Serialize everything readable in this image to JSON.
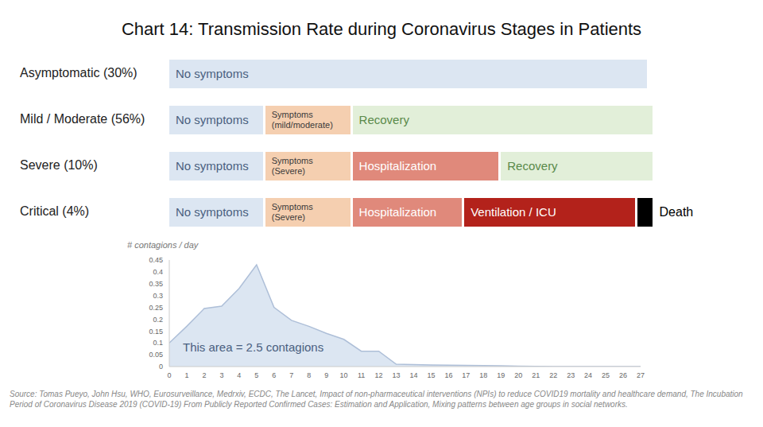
{
  "title": "Chart 14: Transmission Rate during Coronavirus Stages in Patients",
  "stages": [
    {
      "name": "Asymptomatic (30%)",
      "segments": [
        {
          "label": "No symptoms",
          "days": 27.5,
          "color": "#dce6f2",
          "text_color": "#4a5f80"
        }
      ]
    },
    {
      "name": "Mild / Moderate (56%)",
      "segments": [
        {
          "label": "No symptoms",
          "days": 5.5,
          "color": "#dce6f2",
          "text_color": "#4a5f80"
        },
        {
          "label": "Symptoms\n(mild/moderate)",
          "days": 5,
          "color": "#f5cfb0",
          "text_color": "#3a3a3a"
        },
        {
          "label": "Recovery",
          "days": 17.3,
          "color": "#e2efd9",
          "text_color": "#5a8a4a"
        }
      ]
    },
    {
      "name": "Severe (10%)",
      "segments": [
        {
          "label": "No symptoms",
          "days": 5.5,
          "color": "#dce6f2",
          "text_color": "#4a5f80"
        },
        {
          "label": "Symptoms\n(Severe)",
          "days": 5,
          "color": "#f5cfb0",
          "text_color": "#3a3a3a"
        },
        {
          "label": "Hospitalization",
          "days": 8.5,
          "color": "#e0897b",
          "text_color": "#ffffff"
        },
        {
          "label": "Recovery",
          "days": 8.8,
          "color": "#e2efd9",
          "text_color": "#5a8a4a"
        }
      ]
    },
    {
      "name": "Critical (4%)",
      "segments": [
        {
          "label": "No symptoms",
          "days": 5.5,
          "color": "#dce6f2",
          "text_color": "#4a5f80"
        },
        {
          "label": "Symptoms\n(Severe)",
          "days": 5,
          "color": "#f5cfb0",
          "text_color": "#3a3a3a"
        },
        {
          "label": "Hospitalization",
          "days": 6.4,
          "color": "#e0897b",
          "text_color": "#ffffff"
        },
        {
          "label": "Ventilation / ICU",
          "days": 9.9,
          "color": "#b3221b",
          "text_color": "#ffffff"
        },
        {
          "label": "Death",
          "days": 1,
          "color": "#000000",
          "text_color": "#000000",
          "label_position": "outside"
        }
      ]
    }
  ],
  "chart_data": {
    "type": "area",
    "ylabel": "# contagions / day",
    "annotation": "This area = 2.5 contagions",
    "x": [
      0,
      1,
      2,
      3,
      4,
      5,
      6,
      7,
      8,
      9,
      10,
      11,
      12,
      13,
      14,
      15,
      16,
      17,
      18,
      19,
      20,
      21,
      22,
      23,
      24,
      25,
      26,
      27
    ],
    "values": [
      0.1,
      0.17,
      0.245,
      0.255,
      0.33,
      0.43,
      0.25,
      0.195,
      0.17,
      0.14,
      0.115,
      0.065,
      0.065,
      0.01,
      0.008,
      0.007,
      0.006,
      0.005,
      0.004,
      0.003,
      0.002,
      0.001,
      0,
      0,
      0,
      0,
      0,
      0
    ],
    "color": "#dce6f2",
    "xlim": [
      0,
      27
    ],
    "xticks": [
      0,
      1,
      2,
      3,
      4,
      5,
      6,
      7,
      8,
      9,
      10,
      11,
      12,
      13,
      14,
      15,
      16,
      17,
      18,
      19,
      20,
      21,
      22,
      23,
      24,
      25,
      26,
      27
    ],
    "ylim": [
      0,
      0.45
    ],
    "yticks": [
      0,
      0.05,
      0.1,
      0.15,
      0.2,
      0.25,
      0.3,
      0.35,
      0.4,
      0.45
    ],
    "grid": false
  },
  "source": "Source: Tomas Pueyo, John Hsu, WHO, Eurosurveillance, Medrxiv, ECDC, The Lancet, Impact of non-pharmaceutical interventions (NPIs) to reduce COVID19 mortality and healthcare demand, The Incubation Period of Coronavirus Disease 2019 (COVID-19) From Publicly Reported Confirmed Cases: Estimation and Application, Mixing patterns between age groups in social networks."
}
